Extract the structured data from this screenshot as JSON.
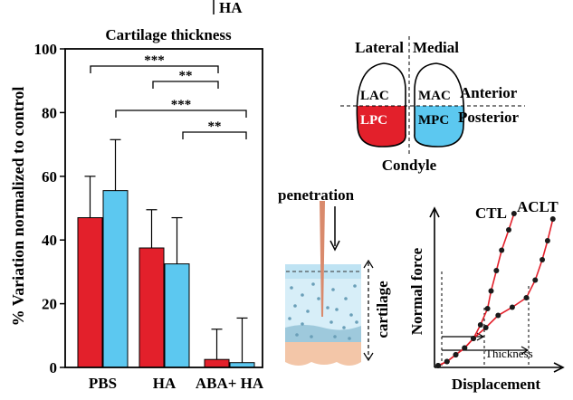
{
  "header_fragment": "HA",
  "chart_data": [
    {
      "type": "bar",
      "title": "Cartilage thickness",
      "ylabel": "% Variation normalized to control",
      "xlabel": "",
      "ylim": [
        0,
        100
      ],
      "yticks": [
        "0",
        "20",
        "40",
        "60",
        "80",
        "100"
      ],
      "categories": [
        "PBS",
        "HA",
        "ABA+ HA"
      ],
      "series": [
        {
          "color": "#e3202b",
          "values": [
            47,
            37.5,
            2.5
          ],
          "errors": [
            13,
            12,
            9.5
          ]
        },
        {
          "color": "#5cc8f0",
          "values": [
            55.5,
            32.5,
            1.5
          ],
          "errors": [
            16,
            14.5,
            14
          ]
        }
      ],
      "significance": [
        "***",
        "**",
        "***",
        "**"
      ],
      "grid": false
    },
    {
      "type": "line",
      "title": "",
      "xlabel": "Displacement",
      "ylabel": "Normal force",
      "series": [
        {
          "name": "CTL",
          "x": [
            0,
            0.5,
            1,
            1.5,
            2,
            2.4,
            2.8,
            3.0,
            3.3,
            3.6,
            4.0,
            4.3
          ],
          "y": [
            0,
            0.3,
            0.8,
            1.3,
            2.0,
            3.0,
            4.2,
            5.5,
            7.0,
            8.5,
            10.0,
            11.2
          ]
        },
        {
          "name": "ACLT",
          "x": [
            0,
            0.5,
            1,
            1.5,
            2,
            2.7,
            3.4,
            4.2,
            5.0,
            5.5,
            5.9,
            6.2,
            6.5
          ],
          "y": [
            0,
            0.3,
            0.8,
            1.3,
            2.0,
            2.8,
            3.7,
            4.3,
            5.0,
            6.3,
            7.8,
            9.2,
            10.8
          ]
        }
      ],
      "annotation": "Thickness"
    }
  ],
  "condyle": {
    "lateral": "Lateral",
    "medial": "Medial",
    "anterior": "Anterior",
    "posterior": "Posterior",
    "caption": "Condyle",
    "lac": "LAC",
    "mac": "MAC",
    "lpc": "LPC",
    "mpc": "MPC",
    "red": "#e3202b",
    "blue": "#5cc8f0"
  },
  "penetration": {
    "label": "penetration",
    "cartilage_label": "cartilage",
    "needle_color": "#d98a6c"
  }
}
